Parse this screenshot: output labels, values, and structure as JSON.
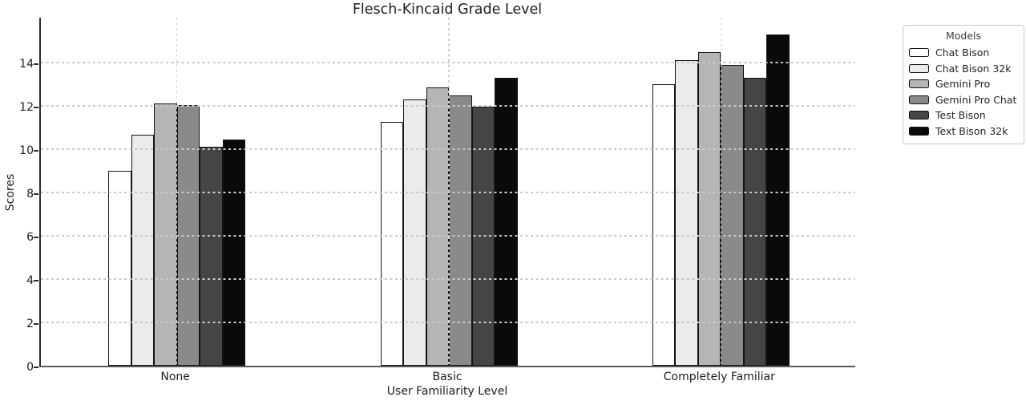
{
  "chart_data": {
    "type": "bar",
    "title": "Flesch-Kincaid Grade Level",
    "xlabel": "User Familiarity Level",
    "ylabel": "Scores",
    "categories": [
      "None",
      "Basic",
      "Completely Familiar"
    ],
    "series": [
      {
        "name": "Chat Bison",
        "color": "#ffffff",
        "values": [
          9.0,
          11.25,
          13.0
        ]
      },
      {
        "name": "Chat Bison 32k",
        "color": "#ebebeb",
        "values": [
          10.65,
          12.3,
          14.1
        ]
      },
      {
        "name": "Gemini Pro",
        "color": "#b5b5b5",
        "values": [
          12.1,
          12.85,
          14.5
        ]
      },
      {
        "name": "Gemini Pro Chat",
        "color": "#8a8a8a",
        "values": [
          12.05,
          12.5,
          13.9
        ]
      },
      {
        "name": "Test Bison",
        "color": "#454545",
        "values": [
          10.1,
          11.95,
          13.3
        ]
      },
      {
        "name": "Text Bison 32k",
        "color": "#0a0a0a",
        "values": [
          10.45,
          13.3,
          15.3
        ]
      }
    ],
    "yticks": [
      0,
      2,
      4,
      6,
      8,
      10,
      12,
      14
    ],
    "ylim": [
      0,
      16.15
    ],
    "grid": true,
    "grid_style": "dashed",
    "bar_edge_color": "#141414",
    "legend": {
      "title": "Models",
      "position": "outside-right"
    }
  }
}
